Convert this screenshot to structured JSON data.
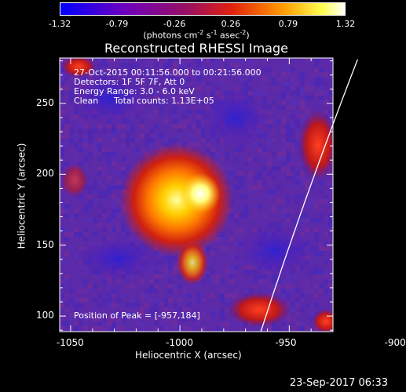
{
  "colorbar": {
    "ticks": [
      -1.32,
      -0.79,
      -0.26,
      0.26,
      0.79,
      1.32
    ],
    "tick_labels": [
      "-1.32",
      "-0.79",
      "-0.26",
      "0.26",
      "0.79",
      "1.32"
    ],
    "units_prefix": "(photons cm",
    "units_exp1": "-2",
    "units_mid": " s",
    "units_exp2": "-1",
    "units_mid2": " asec",
    "units_exp3": "-2",
    "units_suffix": ")"
  },
  "chart_data": {
    "type": "heatmap",
    "title": "Reconstructed RHESSI Image",
    "xlabel": "Heliocentric X (arcsec)",
    "ylabel": "Heliocentric Y (arcsec)",
    "xlim": [
      -1055,
      -930
    ],
    "ylim": [
      89,
      282
    ],
    "x_ticks": [
      -1050,
      -1000,
      -950,
      -900
    ],
    "x_tick_labels": [
      "-1050",
      "-1000",
      "-950",
      "-900"
    ],
    "y_ticks": [
      100,
      150,
      200,
      250
    ],
    "y_tick_labels": [
      "100",
      "150",
      "200",
      "250"
    ],
    "value_range": [
      -1.32,
      1.32
    ],
    "peak": [
      -957,
      184
    ],
    "colormap": [
      "#0000ff",
      "#7a00c8",
      "#c81e1e",
      "#ff8c00",
      "#ffff66",
      "#ffffff"
    ]
  },
  "annotations": {
    "line1": "27-Oct-2015 00:11:56.000 to 00:21:56.000",
    "line2": "Detectors: 1F 5F 7F, Att 0",
    "line3": "Energy Range: 3.0 - 6.0 keV",
    "line4_a": "Clean",
    "line4_b": "Total counts: 1.13E+05",
    "peak_text": "Position of Peak = [-957,184]"
  },
  "footer": {
    "date": "23-Sep-2017 06:33"
  }
}
